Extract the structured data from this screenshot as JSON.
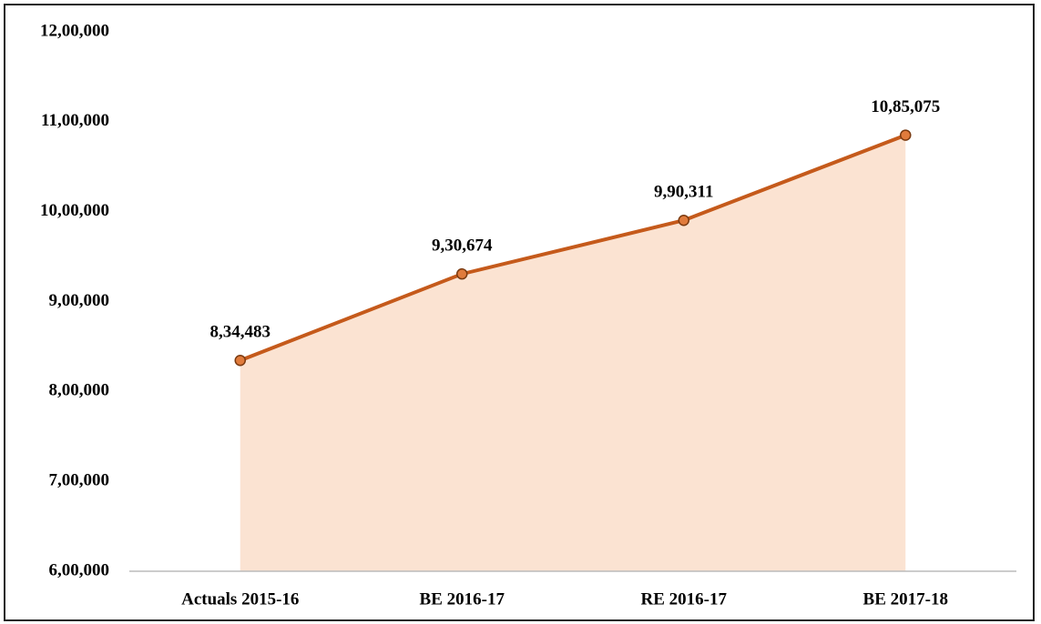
{
  "chart_data": {
    "type": "area",
    "categories": [
      "Actuals 2015-16",
      "BE 2016-17",
      "RE 2016-17",
      "BE 2017-18"
    ],
    "values": [
      834483,
      930674,
      990311,
      1085075
    ],
    "value_labels": [
      "8,34,483",
      "9,30,674",
      "9,90,311",
      "10,85,075"
    ],
    "color": "#c55a1b",
    "fill": "#fbe3d2",
    "ylim": [
      600000,
      1200000
    ],
    "yticks": [
      {
        "value": 600000,
        "label": "6,00,000"
      },
      {
        "value": 700000,
        "label": "7,00,000"
      },
      {
        "value": 800000,
        "label": "8,00,000"
      },
      {
        "value": 900000,
        "label": "9,00,000"
      },
      {
        "value": 1000000,
        "label": "10,00,000"
      },
      {
        "value": 1100000,
        "label": "11,00,000"
      },
      {
        "value": 1200000,
        "label": "12,00,000"
      }
    ],
    "grid": false
  }
}
